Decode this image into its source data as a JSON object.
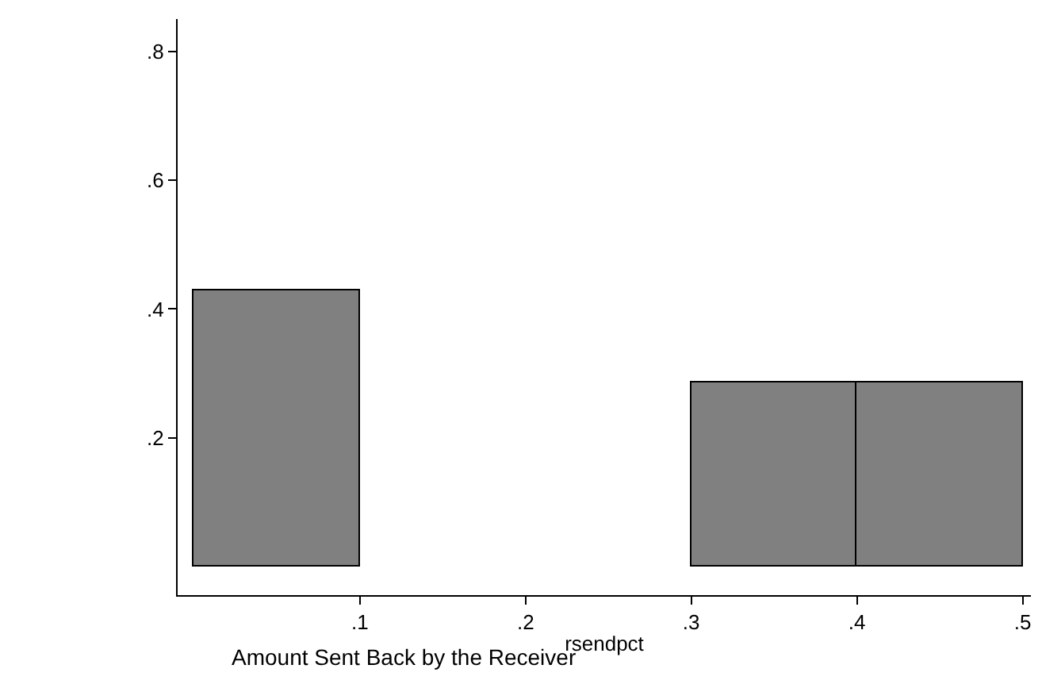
{
  "chart_data": {
    "type": "histogram",
    "xlabel": "rsendpct",
    "annotations": [
      "Amount Sent Back by the Receiver"
    ],
    "bins": [
      0,
      0.1,
      0.2,
      0.3,
      0.4,
      0.5
    ],
    "values": [
      0.43,
      0,
      0,
      0.286,
      0.286
    ],
    "color": "#808080",
    "xlim": [
      -0.01,
      0.505
    ],
    "ylim": [
      -0.044,
      0.85
    ],
    "xticks": [
      {
        "value": 0.1,
        "label": ".1"
      },
      {
        "value": 0.2,
        "label": ".2"
      },
      {
        "value": 0.3,
        "label": ".3"
      },
      {
        "value": 0.4,
        "label": ".4"
      },
      {
        "value": 0.5,
        "label": ".5"
      }
    ],
    "yticks": [
      {
        "value": 0.2,
        "label": ".2"
      },
      {
        "value": 0.4,
        "label": ".4"
      },
      {
        "value": 0.6,
        "label": ".6"
      },
      {
        "value": 0.8,
        "label": ".8"
      }
    ]
  }
}
